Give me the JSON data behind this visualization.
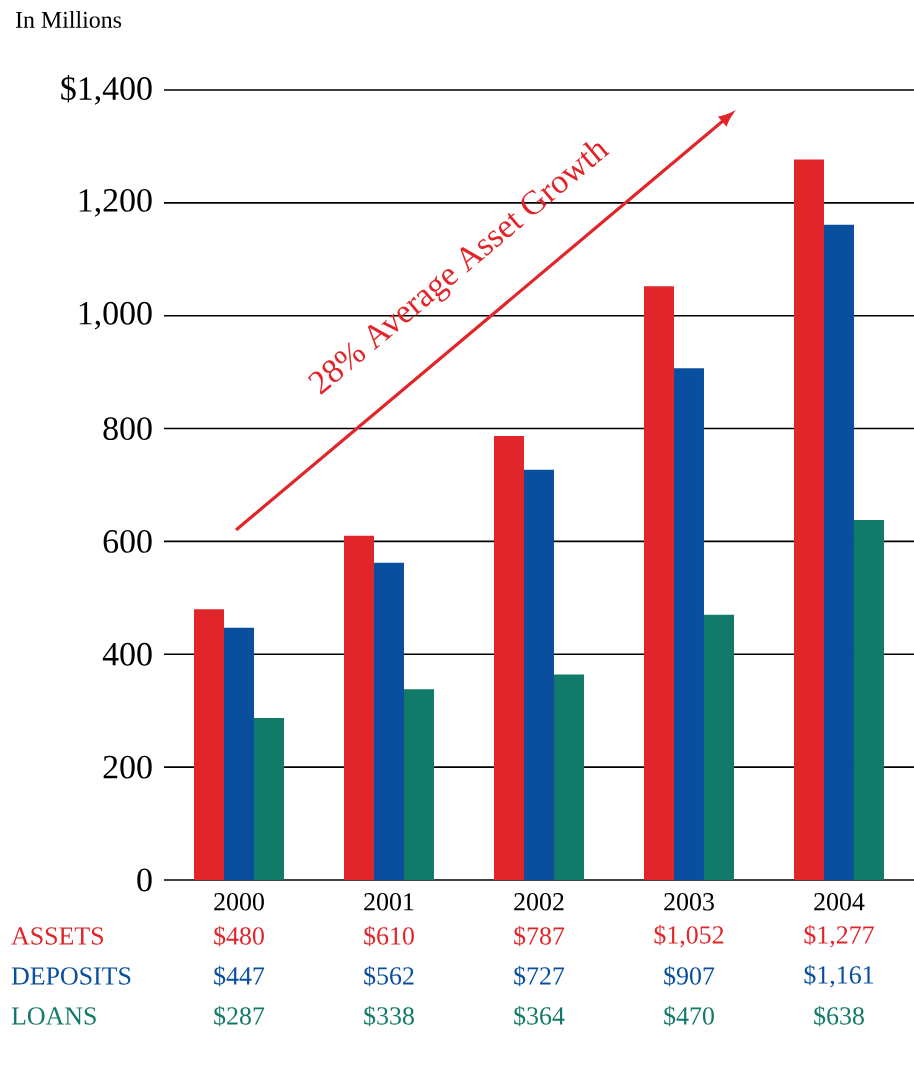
{
  "chart_data": {
    "type": "bar",
    "ylabel": "In Millions",
    "categories": [
      "2000",
      "2001",
      "2002",
      "2003",
      "2004"
    ],
    "series": [
      {
        "name": "ASSETS",
        "color": "#e0262a",
        "values": [
          480,
          610,
          787,
          1052,
          1277
        ],
        "value_labels": [
          "$480",
          "$610",
          "$787",
          "$1,052",
          "$1,277"
        ]
      },
      {
        "name": "DEPOSITS",
        "color": "#0a4f9e",
        "values": [
          447,
          562,
          727,
          907,
          1161
        ],
        "value_labels": [
          "$447",
          "$562",
          "$727",
          "$907",
          "$1,161"
        ]
      },
      {
        "name": "LOANS",
        "color": "#127a68",
        "values": [
          287,
          338,
          364,
          470,
          638
        ],
        "value_labels": [
          "$287",
          "$338",
          "$364",
          "$470",
          "$638"
        ]
      }
    ],
    "ylim": [
      0,
      1400
    ],
    "yticks": [
      0,
      200,
      400,
      600,
      800,
      {
        "value": 1000,
        "label": "1,000"
      },
      {
        "value": 1200,
        "label": "1,200"
      },
      {
        "value": 1400,
        "label": "$1,400"
      }
    ],
    "grid": "y",
    "annotations": [
      "28% Average Asset Growth"
    ]
  }
}
